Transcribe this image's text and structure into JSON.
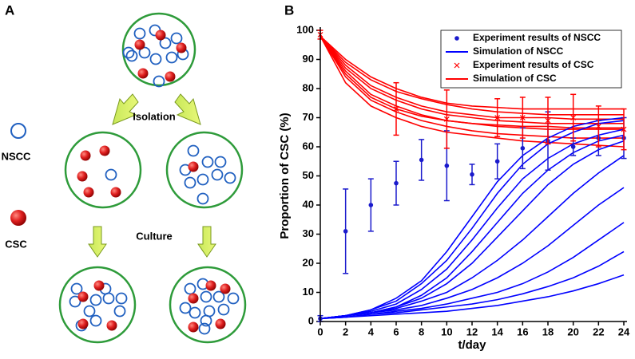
{
  "panel_a": {
    "label": "A",
    "steps": [
      "Isolation",
      "Culture"
    ],
    "legend": [
      "NSCC",
      "CSC"
    ]
  },
  "chart_data": {
    "type": "line",
    "panel_label": "B",
    "xlabel": "t/day",
    "ylabel": "Proportion of CSC (%)",
    "xlim": [
      0,
      24
    ],
    "xticks": [
      0,
      2,
      4,
      6,
      8,
      10,
      12,
      14,
      16,
      18,
      20,
      22,
      24
    ],
    "ylim": [
      0,
      100
    ],
    "yticks": [
      0,
      10,
      20,
      30,
      40,
      50,
      60,
      70,
      80,
      90,
      100
    ],
    "legend": "upper right",
    "x": [
      0,
      2,
      4,
      6,
      8,
      10,
      12,
      14,
      16,
      18,
      20,
      22,
      24
    ],
    "series": [
      {
        "name": "Experiment results of NSCC",
        "color": "#1a1acc",
        "mode": "markers",
        "marker": "dot",
        "x": [
          0,
          2,
          4,
          6,
          8,
          10,
          12,
          14,
          16,
          18,
          20,
          22,
          24
        ],
        "values": [
          1,
          31,
          40,
          47.5,
          55.5,
          53.5,
          50.5,
          55,
          59.5,
          62,
          60,
          63,
          63
        ],
        "errors": [
          1,
          14.5,
          9,
          7.5,
          7,
          12,
          3.5,
          6,
          7,
          10,
          3,
          6,
          7
        ]
      },
      {
        "name": "Simulation of NSCC",
        "color": "#0000ff",
        "mode": "lines",
        "values": [
          [
            1,
            2,
            4,
            8,
            14,
            24,
            36,
            48,
            57,
            63,
            67,
            69,
            70
          ],
          [
            1,
            2,
            4,
            7,
            13,
            21,
            32,
            44,
            54,
            61,
            65,
            68,
            69
          ],
          [
            1,
            2,
            3.5,
            6,
            11,
            18,
            28,
            39,
            49,
            56,
            61,
            64,
            66
          ],
          [
            1,
            2,
            3,
            5,
            9,
            15,
            24,
            34,
            44,
            52,
            58,
            62,
            64
          ],
          [
            1,
            2,
            3,
            5,
            8,
            13,
            20,
            29,
            38,
            47,
            54,
            59,
            62
          ],
          [
            1,
            2,
            3,
            4.5,
            7,
            10,
            15,
            21,
            28,
            36,
            44,
            51,
            57
          ],
          [
            1,
            2,
            3,
            4,
            5.5,
            8,
            11,
            15,
            20,
            26,
            33,
            40,
            46
          ],
          [
            1,
            1.5,
            2.5,
            3.5,
            4.5,
            6,
            8,
            10,
            13,
            17,
            22,
            28,
            34
          ],
          [
            1,
            1.5,
            2.5,
            3,
            4,
            5,
            6,
            7.5,
            9.5,
            12,
            15,
            19,
            24
          ],
          [
            1,
            1.5,
            2,
            2.5,
            3,
            3.5,
            4.5,
            5.5,
            7,
            8.5,
            10.5,
            13,
            16
          ]
        ]
      },
      {
        "name": "Experiment results of CSC",
        "color": "#ff0000",
        "mode": "markers",
        "marker": "x",
        "x": [
          0,
          6,
          10,
          14,
          16,
          18,
          20,
          22,
          24
        ],
        "values": [
          98.5,
          73,
          69.5,
          70,
          70,
          69,
          70,
          67,
          66
        ],
        "errors": [
          1.5,
          9,
          10,
          6.5,
          7,
          8,
          8,
          7,
          7
        ]
      },
      {
        "name": "Simulation of CSC",
        "color": "#ff0000",
        "mode": "lines",
        "values": [
          [
            98,
            90,
            84,
            80,
            77,
            75,
            74,
            73.5,
            73,
            73,
            73,
            73,
            73
          ],
          [
            98,
            89,
            83,
            79,
            76.5,
            74.5,
            73,
            72,
            71.5,
            71,
            71,
            71,
            71
          ],
          [
            98,
            88,
            81,
            77,
            74,
            72,
            71,
            70,
            70,
            70,
            69.5,
            69.5,
            69.5
          ],
          [
            98,
            87,
            80,
            76,
            73,
            71,
            70,
            69,
            68.5,
            68,
            68,
            68,
            68
          ],
          [
            98,
            85,
            77,
            73,
            70.5,
            69,
            68,
            67.5,
            67,
            67,
            66.5,
            66.5,
            66.5
          ],
          [
            98,
            86,
            78,
            74,
            71,
            69,
            68,
            67,
            66.5,
            66,
            66,
            66,
            66
          ],
          [
            98,
            84,
            76,
            72,
            69,
            67,
            65.5,
            64.5,
            64,
            63.5,
            63,
            63,
            63
          ],
          [
            98,
            82,
            74,
            70,
            67,
            65,
            64,
            63,
            62,
            61.5,
            61,
            60.5,
            60
          ]
        ]
      }
    ]
  }
}
